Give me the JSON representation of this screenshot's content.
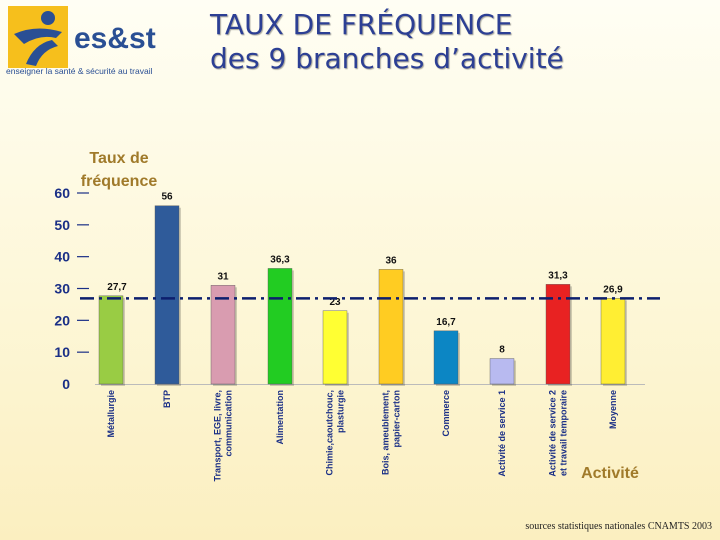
{
  "header": {
    "logo_text": "es&st",
    "logo_tagline": "enseigner la santé & sécurité au travail",
    "title_line1": "TAUX DE FRÉQUENCE",
    "title_line2": "des 9 branches d’activité"
  },
  "chart_data": {
    "type": "bar",
    "title": "",
    "ylabel_line1": "Taux de",
    "ylabel_line2": "fréquence",
    "xlabel": "Activité",
    "ylim": [
      0,
      60
    ],
    "yticks": [
      0,
      10,
      20,
      30,
      40,
      50,
      60
    ],
    "reference_line": {
      "label": "Moyenne",
      "value": 26.9
    },
    "categories": [
      [
        "Métallurgie"
      ],
      [
        "BTP"
      ],
      [
        "Transport, EGE, livre,",
        "communication"
      ],
      [
        "Alimentation"
      ],
      [
        "Chimie,caoutchouc,",
        "plasturgie"
      ],
      [
        "Bois, ameublement,",
        "papier-carton"
      ],
      [
        "Commerce"
      ],
      [
        "Activité de service 1"
      ],
      [
        "Activité de service 2",
        "et travail temporaire"
      ],
      [
        "Moyenne"
      ]
    ],
    "values": [
      27.7,
      56,
      31,
      36.3,
      23,
      36,
      16.7,
      8,
      31.3,
      26.9
    ],
    "value_labels": [
      "27,7",
      "56",
      "31",
      "36,3",
      "23",
      "36",
      "16,7",
      "8",
      "31,3",
      "26,9"
    ],
    "colors": [
      "#99cc44",
      "#2f5b9a",
      "#d99cb0",
      "#22cc22",
      "#ffff33",
      "#ffcc22",
      "#0c86c4",
      "#b8baf0",
      "#e82222",
      "#ffee33"
    ]
  },
  "footer": {
    "source": "sources statistiques nationales CNAMTS 2003"
  }
}
